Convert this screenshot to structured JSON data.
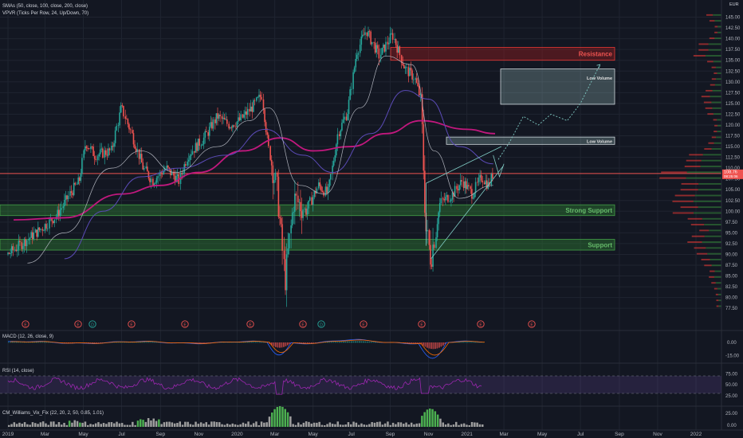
{
  "indicators": {
    "sma": "SMAs (50, close, 100, close, 200, close)",
    "vpvr": "VPVR (Ticks Per Row, 24, Up/Down, 70)",
    "macd": "MACD (12, 26, close, 9)",
    "rsi": "RSI (14, close)",
    "vix": "CM_Williams_Vix_Fix (22, 20, 2, 50, 0.85, 1.01)"
  },
  "currency": "EUR",
  "colors": {
    "bg": "#131722",
    "grid": "#1f2430",
    "up": "#26a69a",
    "down": "#ef5350",
    "sma50": "#b2b5be",
    "sma100": "#5b4bb7",
    "sma200": "#c2187e",
    "support": "#2e7d32",
    "resistance": "#b71c1c",
    "rsi": "#9c27b0"
  },
  "chart_data": {
    "type": "candlestick",
    "x_axis": [
      "2019",
      "Mar",
      "May",
      "Jul",
      "Sep",
      "Nov",
      "2020",
      "Mar",
      "May",
      "Jul",
      "Sep",
      "Nov",
      "2021",
      "Mar",
      "May",
      "Jul",
      "Sep",
      "Nov",
      "2022"
    ],
    "y_ticks": [
      "145.00",
      "142.50",
      "140.00",
      "137.50",
      "135.00",
      "132.50",
      "130.00",
      "127.50",
      "125.00",
      "122.50",
      "120.00",
      "117.50",
      "115.00",
      "112.50",
      "110.00",
      "107.50",
      "105.00",
      "102.50",
      "100.00",
      "97.50",
      "95.00",
      "92.50",
      "90.00",
      "87.50",
      "85.00",
      "82.50",
      "80.00",
      "77.50"
    ],
    "ylim": [
      75.5,
      147.5
    ],
    "price_path": [
      [
        "2019-01-01",
        90
      ],
      [
        "2019-02-15",
        95
      ],
      [
        "2019-03-20",
        99
      ],
      [
        "2019-04-10",
        104
      ],
      [
        "2019-04-25",
        107
      ],
      [
        "2019-05-05",
        116
      ],
      [
        "2019-05-20",
        113
      ],
      [
        "2019-06-15",
        114
      ],
      [
        "2019-07-01",
        124
      ],
      [
        "2019-07-15",
        119
      ],
      [
        "2019-08-05",
        110
      ],
      [
        "2019-08-20",
        107
      ],
      [
        "2019-09-10",
        110
      ],
      [
        "2019-10-01",
        107
      ],
      [
        "2019-10-15",
        113
      ],
      [
        "2019-11-10",
        117
      ],
      [
        "2019-12-01",
        122
      ],
      [
        "2019-12-20",
        120
      ],
      [
        "2020-01-05",
        121
      ],
      [
        "2020-01-25",
        124
      ],
      [
        "2020-02-10",
        127
      ],
      [
        "2020-02-20",
        115
      ],
      [
        "2020-03-05",
        105
      ],
      [
        "2020-03-18",
        84
      ],
      [
        "2020-04-01",
        103
      ],
      [
        "2020-04-20",
        100
      ],
      [
        "2020-05-10",
        106
      ],
      [
        "2020-05-25",
        104
      ],
      [
        "2020-06-10",
        118
      ],
      [
        "2020-06-25",
        123
      ],
      [
        "2020-07-10",
        137
      ],
      [
        "2020-07-25",
        142
      ],
      [
        "2020-08-15",
        136
      ],
      [
        "2020-09-05",
        141
      ],
      [
        "2020-09-25",
        133
      ],
      [
        "2020-10-10",
        131
      ],
      [
        "2020-10-20",
        126
      ],
      [
        "2020-10-28",
        96
      ],
      [
        "2020-11-05",
        89
      ],
      [
        "2020-11-20",
        102
      ],
      [
        "2020-12-10",
        104
      ],
      [
        "2020-12-25",
        107
      ],
      [
        "2021-01-10",
        104
      ],
      [
        "2021-01-25",
        108
      ],
      [
        "2021-02-05",
        106
      ],
      [
        "2021-02-12",
        108.8
      ]
    ],
    "sma50_path": [
      [
        "2019-02-01",
        88
      ],
      [
        "2019-04-01",
        95
      ],
      [
        "2019-06-15",
        110
      ],
      [
        "2019-08-01",
        114
      ],
      [
        "2019-09-25",
        109
      ],
      [
        "2019-12-01",
        115
      ],
      [
        "2020-01-20",
        121
      ],
      [
        "2020-02-20",
        124
      ],
      [
        "2020-04-10",
        106
      ],
      [
        "2020-05-20",
        104
      ],
      [
        "2020-07-15",
        124
      ],
      [
        "2020-08-25",
        136
      ],
      [
        "2020-10-05",
        134
      ],
      [
        "2020-11-10",
        114
      ],
      [
        "2020-12-20",
        103
      ],
      [
        "2021-02-12",
        106
      ]
    ],
    "sma100_path": [
      [
        "2019-04-01",
        89
      ],
      [
        "2019-06-01",
        100
      ],
      [
        "2019-08-01",
        108
      ],
      [
        "2019-10-01",
        110
      ],
      [
        "2019-12-15",
        113
      ],
      [
        "2020-02-15",
        119
      ],
      [
        "2020-04-15",
        113
      ],
      [
        "2020-06-01",
        109
      ],
      [
        "2020-08-01",
        118
      ],
      [
        "2020-09-25",
        128
      ],
      [
        "2020-11-01",
        126
      ],
      [
        "2020-12-20",
        115
      ],
      [
        "2021-02-12",
        111
      ]
    ],
    "sma200_path": [
      [
        "2019-01-10",
        98
      ],
      [
        "2019-04-01",
        98.5
      ],
      [
        "2019-07-01",
        104
      ],
      [
        "2019-09-01",
        106
      ],
      [
        "2019-11-01",
        109
      ],
      [
        "2020-01-10",
        114
      ],
      [
        "2020-03-10",
        117
      ],
      [
        "2020-05-01",
        114
      ],
      [
        "2020-07-01",
        115
      ],
      [
        "2020-08-25",
        118
      ],
      [
        "2020-10-20",
        121
      ],
      [
        "2021-01-01",
        119
      ],
      [
        "2021-02-15",
        118
      ]
    ],
    "forecast_path": [
      [
        "2021-02-20",
        112
      ],
      [
        "2021-03-10",
        116
      ],
      [
        "2021-04-01",
        122
      ],
      [
        "2021-04-25",
        120
      ],
      [
        "2021-05-15",
        122.5
      ],
      [
        "2021-06-10",
        121
      ],
      [
        "2021-07-01",
        125
      ],
      [
        "2021-08-01",
        134
      ]
    ],
    "zones": [
      {
        "label": "Resistance",
        "low": 135,
        "high": 138
      },
      {
        "label": "Low Volume",
        "low": 124.8,
        "high": 133
      },
      {
        "label": "Low Volume",
        "low": 115.5,
        "high": 117.2
      },
      {
        "label": "Strong Support",
        "low": 99,
        "high": 101.5
      },
      {
        "label": "Support",
        "low": 91,
        "high": 93.5
      }
    ],
    "current_price": {
      "value": "108.76",
      "countdown": "08:25:06"
    },
    "last_price_line": 108.76,
    "earnings_markers": [
      "E",
      "E",
      "D",
      "E",
      "E",
      "E",
      "E",
      "D",
      "E",
      "E",
      "E",
      "E"
    ],
    "macd_ticks": [
      "0.00",
      "-15.00"
    ],
    "rsi_ticks": [
      "75.00",
      "50.00",
      "25.00"
    ],
    "vix_ticks": [
      "25.00",
      "0.00"
    ]
  }
}
